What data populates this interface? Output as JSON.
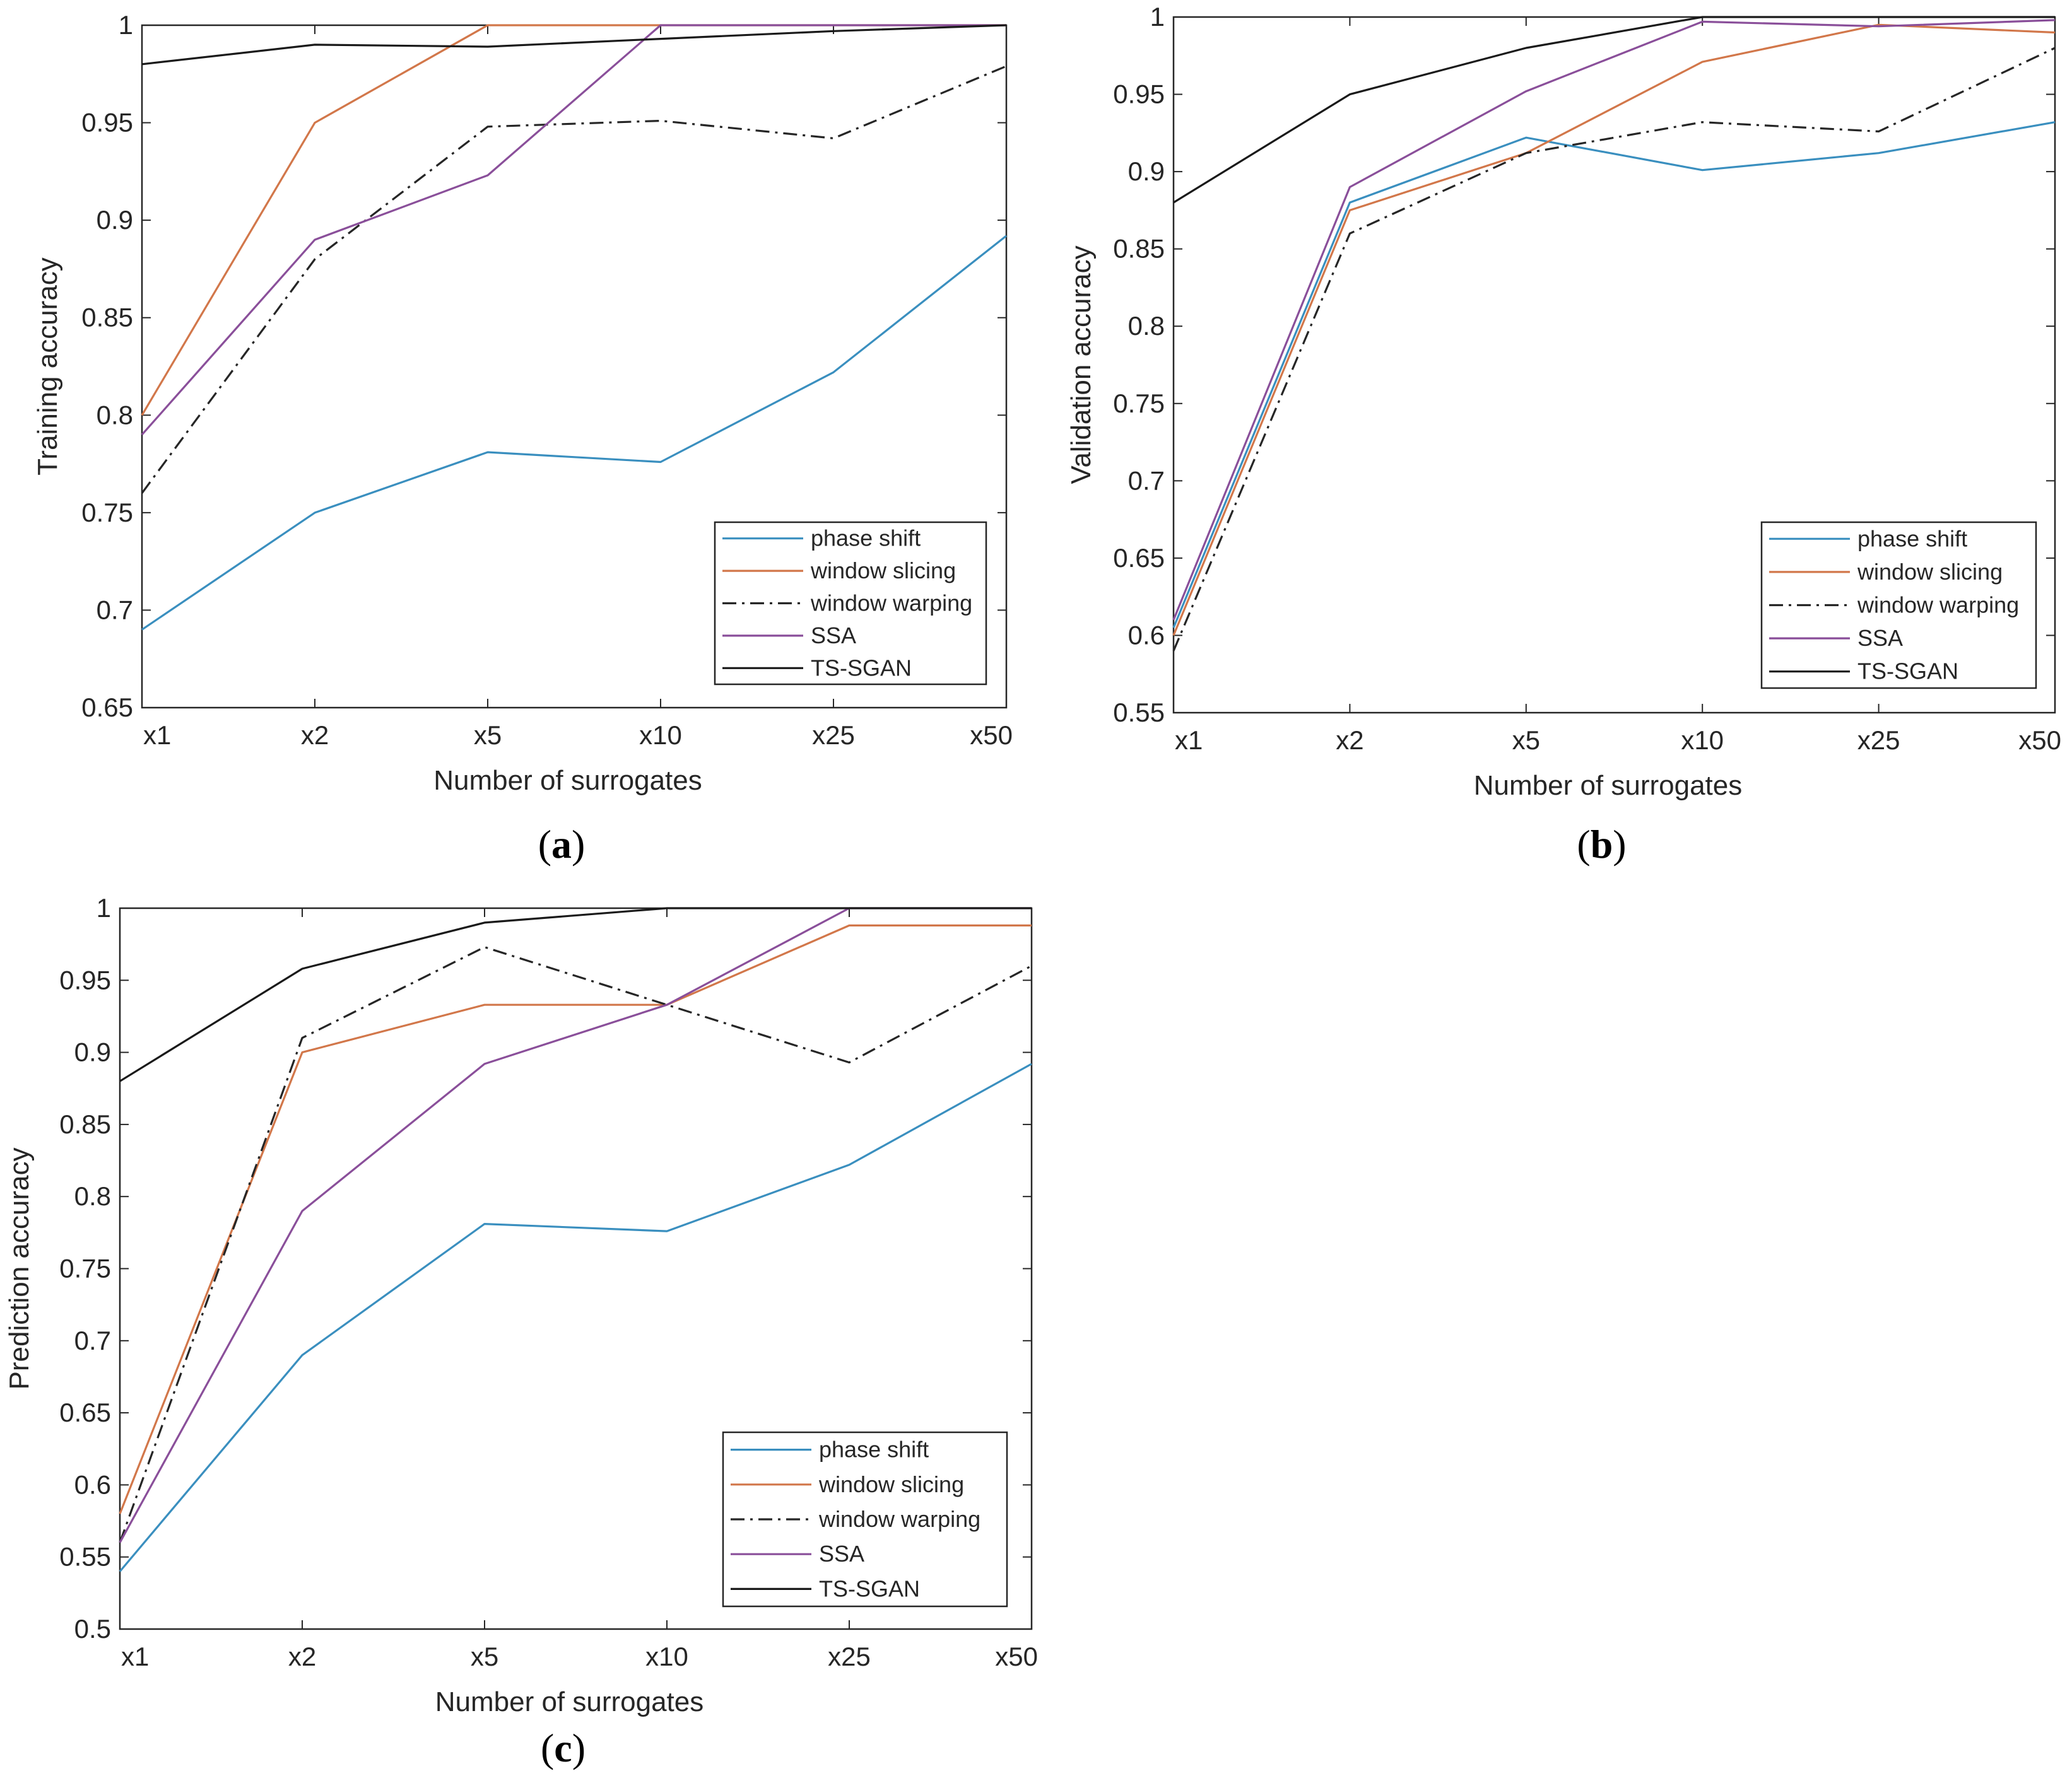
{
  "colors": {
    "phase_shift": "#3a8fbf",
    "window_slicing": "#d2774a",
    "window_warping": "#262626",
    "SSA": "#8a4f9a",
    "TS_SGAN": "#1a1a1a"
  },
  "chart_data": [
    {
      "id": "a",
      "type": "line",
      "caption_letter": "a",
      "categories": [
        "x1",
        "x2",
        "x5",
        "x10",
        "x25",
        "x50"
      ],
      "xlabel": "Number of surrogates",
      "ylabel": "Training accuracy",
      "ylim": [
        0.65,
        1
      ],
      "yticks": [
        0.65,
        0.7,
        0.75,
        0.8,
        0.85,
        0.9,
        0.95,
        1
      ],
      "ytick_labels": [
        "0.65",
        "0.7",
        "0.75",
        "0.8",
        "0.85",
        "0.9",
        "0.95",
        "1"
      ],
      "legend_location": "bottom-right",
      "series": [
        {
          "name": "phase shift",
          "color_key": "phase_shift",
          "dash": "solid",
          "values": [
            0.69,
            0.75,
            0.781,
            0.776,
            0.822,
            0.892
          ]
        },
        {
          "name": "window slicing",
          "color_key": "window_slicing",
          "dash": "solid",
          "values": [
            0.8,
            0.95,
            1.0,
            1.0,
            1.0,
            1.0
          ]
        },
        {
          "name": "window warping",
          "color_key": "window_warping",
          "dash": "dashdot",
          "values": [
            0.76,
            0.88,
            0.948,
            0.951,
            0.942,
            0.979
          ]
        },
        {
          "name": "SSA",
          "color_key": "SSA",
          "dash": "solid",
          "values": [
            0.79,
            0.89,
            0.923,
            1.0,
            1.0,
            1.0
          ]
        },
        {
          "name": "TS-SGAN",
          "color_key": "TS_SGAN",
          "dash": "solid",
          "values": [
            0.98,
            0.99,
            0.989,
            0.993,
            0.997,
            1.0
          ]
        }
      ]
    },
    {
      "id": "b",
      "type": "line",
      "caption_letter": "b",
      "categories": [
        "x1",
        "x2",
        "x5",
        "x10",
        "x25",
        "x50"
      ],
      "xlabel": "Number of surrogates",
      "ylabel": "Validation accuracy",
      "ylim": [
        0.55,
        1
      ],
      "yticks": [
        0.55,
        0.6,
        0.65,
        0.7,
        0.75,
        0.8,
        0.85,
        0.9,
        0.95,
        1
      ],
      "ytick_labels": [
        "0.55",
        "0.6",
        "0.65",
        "0.7",
        "0.75",
        "0.8",
        "0.85",
        "0.9",
        "0.95",
        "1"
      ],
      "legend_location": "bottom-right",
      "series": [
        {
          "name": "phase shift",
          "color_key": "phase_shift",
          "dash": "solid",
          "values": [
            0.605,
            0.88,
            0.922,
            0.901,
            0.912,
            0.932
          ]
        },
        {
          "name": "window slicing",
          "color_key": "window_slicing",
          "dash": "solid",
          "values": [
            0.6,
            0.875,
            0.912,
            0.971,
            0.995,
            0.99
          ]
        },
        {
          "name": "window warping",
          "color_key": "window_warping",
          "dash": "dashdot",
          "values": [
            0.59,
            0.86,
            0.912,
            0.932,
            0.926,
            0.98
          ]
        },
        {
          "name": "SSA",
          "color_key": "SSA",
          "dash": "solid",
          "values": [
            0.61,
            0.89,
            0.952,
            0.997,
            0.994,
            0.998
          ]
        },
        {
          "name": "TS-SGAN",
          "color_key": "TS_SGAN",
          "dash": "solid",
          "values": [
            0.88,
            0.95,
            0.98,
            1.0,
            1.0,
            1.0
          ]
        }
      ]
    },
    {
      "id": "c",
      "type": "line",
      "caption_letter": "c",
      "categories": [
        "x1",
        "x2",
        "x5",
        "x10",
        "x25",
        "x50"
      ],
      "xlabel": "Number of surrogates",
      "ylabel": "Prediction accuracy",
      "ylim": [
        0.5,
        1
      ],
      "yticks": [
        0.5,
        0.55,
        0.6,
        0.65,
        0.7,
        0.75,
        0.8,
        0.85,
        0.9,
        0.95,
        1
      ],
      "ytick_labels": [
        "0.5",
        "0.55",
        "0.6",
        "0.65",
        "0.7",
        "0.75",
        "0.8",
        "0.85",
        "0.9",
        "0.95",
        "1"
      ],
      "legend_location": "bottom-right",
      "series": [
        {
          "name": "phase shift",
          "color_key": "phase_shift",
          "dash": "solid",
          "values": [
            0.54,
            0.69,
            0.781,
            0.776,
            0.822,
            0.892
          ]
        },
        {
          "name": "window slicing",
          "color_key": "window_slicing",
          "dash": "solid",
          "values": [
            0.58,
            0.9,
            0.933,
            0.933,
            0.988,
            0.988
          ]
        },
        {
          "name": "window warping",
          "color_key": "window_warping",
          "dash": "dashdot",
          "values": [
            0.56,
            0.91,
            0.973,
            0.933,
            0.893,
            0.96
          ]
        },
        {
          "name": "SSA",
          "color_key": "SSA",
          "dash": "solid",
          "values": [
            0.56,
            0.79,
            0.892,
            0.933,
            1.0,
            1.0
          ]
        },
        {
          "name": "TS-SGAN",
          "color_key": "TS_SGAN",
          "dash": "solid",
          "values": [
            0.88,
            0.958,
            0.99,
            1.0,
            1.0,
            1.0
          ]
        }
      ]
    }
  ]
}
